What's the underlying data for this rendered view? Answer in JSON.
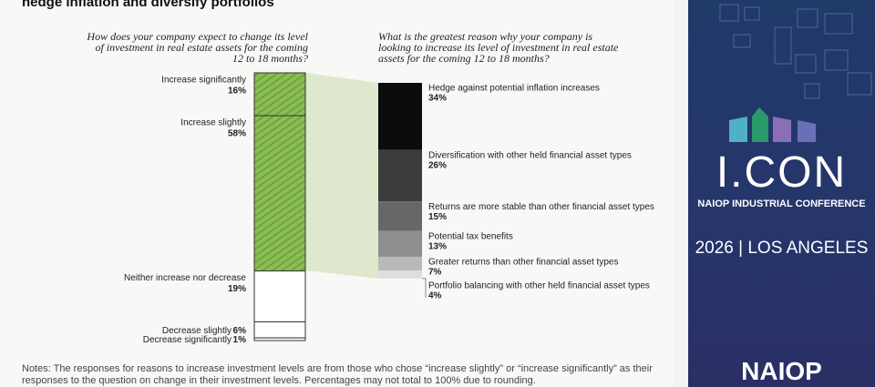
{
  "title": "hedge inflation and diversify portfolios",
  "chart_data": [
    {
      "type": "stacked-column",
      "title": "How does your company expect to change its level of investment in real estate assets for the coming 12 to 18 months?",
      "categories": [
        "Increase significantly",
        "Increase slightly",
        "Neither increase nor decrease",
        "Decrease slightly",
        "Decrease significantly"
      ],
      "values": [
        16,
        58,
        19,
        6,
        1
      ],
      "value_labels": [
        "16%",
        "58%",
        "19%",
        "6%",
        "1%"
      ],
      "colors": [
        "#7fb24a",
        "#7fb24a",
        "#ffffff",
        "#ffffff",
        "#ffffff"
      ]
    },
    {
      "type": "stacked-column",
      "title": "What is the greatest reason why your company is looking to increase its level of investment in real estate assets for the coming 12 to 18 months?",
      "categories": [
        "Hedge against potential inflation increases",
        "Diversification with other held financial asset types",
        "Returns are more stable than other financial asset types",
        "Potential tax benefits",
        "Greater returns than other financial asset types",
        "Portfolio balancing with other held financial asset types"
      ],
      "values": [
        34,
        26,
        15,
        13,
        7,
        4
      ],
      "value_labels": [
        "34%",
        "26%",
        "15%",
        "13%",
        "7%",
        "4%"
      ],
      "colors": [
        "#0b0c0c",
        "#3c3c3c",
        "#676767",
        "#8e8e8e",
        "#b9b9b9",
        "#dedede"
      ]
    }
  ],
  "notes": "Notes: The responses for reasons to increase investment levels are from those who chose “increase slightly” or “increase significantly” as their responses to the question on change in their investment levels. Percentages may not total to 100% due to rounding.",
  "ad": {
    "logo": "I.CON",
    "subtitle": "NAIOP INDUSTRIAL CONFERENCE",
    "event": "2026 | LOS ANGELES",
    "brand": "NAIOP"
  }
}
